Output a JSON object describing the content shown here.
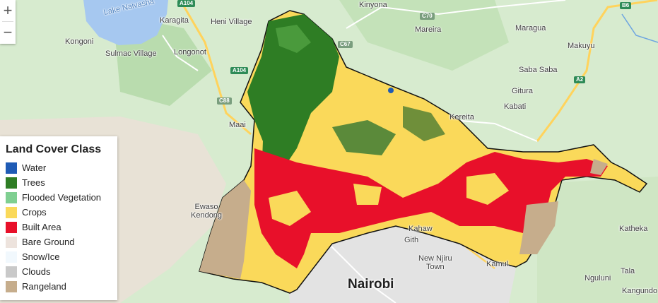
{
  "places": [
    {
      "id": "lake-naivasha",
      "label": "Lake Naivasha"
    },
    {
      "id": "karagita",
      "label": "Karagita"
    },
    {
      "id": "heni-village",
      "label": "Heni Village"
    },
    {
      "id": "kongoni",
      "label": "Kongoni"
    },
    {
      "id": "sulmac-village",
      "label": "Sulmac Village"
    },
    {
      "id": "longonot",
      "label": "Longonot"
    },
    {
      "id": "kinyona",
      "label": "Kinyona"
    },
    {
      "id": "mareira",
      "label": "Mareira"
    },
    {
      "id": "maragua",
      "label": "Maragua"
    },
    {
      "id": "makuyu",
      "label": "Makuyu"
    },
    {
      "id": "saba-saba",
      "label": "Saba Saba"
    },
    {
      "id": "gitura",
      "label": "Gitura"
    },
    {
      "id": "kabati",
      "label": "Kabati"
    },
    {
      "id": "kereita",
      "label": "Kereita"
    },
    {
      "id": "maai",
      "label": "Maai"
    },
    {
      "id": "ewaso-kedong",
      "label": "Ewaso\nKendong"
    },
    {
      "id": "kahawa",
      "label": "Kahaw"
    },
    {
      "id": "githurai",
      "label": "Gith"
    },
    {
      "id": "new-njiru",
      "label": "New Njiru\nTown"
    },
    {
      "id": "kamulu",
      "label": "Kamul"
    },
    {
      "id": "katheka",
      "label": "Katheka"
    },
    {
      "id": "nguluni",
      "label": "Nguluni"
    },
    {
      "id": "tala",
      "label": "Tala"
    },
    {
      "id": "kangundo",
      "label": "Kangundo"
    },
    {
      "id": "nairobi",
      "label": "Nairobi"
    }
  ],
  "roads": [
    {
      "id": "a104-top",
      "label": "A104"
    },
    {
      "id": "a104-mid",
      "label": "A104"
    },
    {
      "id": "c88",
      "label": "C88"
    },
    {
      "id": "c67",
      "label": "C67"
    },
    {
      "id": "c70",
      "label": "C70"
    },
    {
      "id": "b6",
      "label": "B6"
    },
    {
      "id": "a2",
      "label": "A2"
    }
  ],
  "zoom": {
    "in_label": "+",
    "out_label": "−"
  },
  "legend": {
    "title": "Land Cover Class",
    "items": [
      {
        "label": "Water",
        "color": "#1f5bb5"
      },
      {
        "label": "Trees",
        "color": "#2e7d24"
      },
      {
        "label": "Flooded Vegetation",
        "color": "#7fcf91"
      },
      {
        "label": "Crops",
        "color": "#fad95a"
      },
      {
        "label": "Built Area",
        "color": "#e8102a"
      },
      {
        "label": "Bare Ground",
        "color": "#ede3dd"
      },
      {
        "label": "Snow/Ice",
        "color": "#f1f8fd"
      },
      {
        "label": "Clouds",
        "color": "#c9c9c9"
      },
      {
        "label": "Rangeland",
        "color": "#c6ad8c"
      }
    ]
  }
}
